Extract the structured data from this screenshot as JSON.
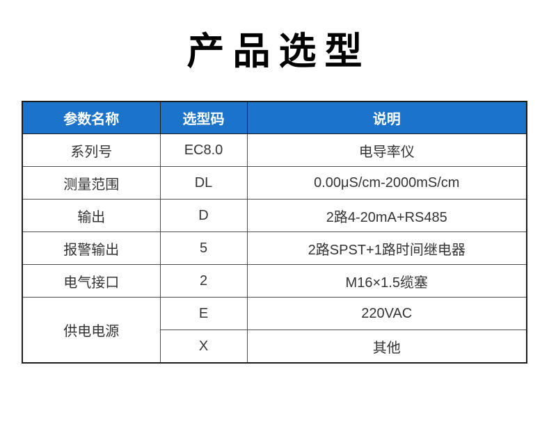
{
  "page": {
    "title": "产品选型",
    "background": "#ffffff"
  },
  "colors": {
    "header_bg": "#1b74ca",
    "header_text": "#ffffff",
    "body_text": "#333333",
    "outer_border": "#1c1c1c",
    "inner_border": "#4d4d4d",
    "title_text": "#000000"
  },
  "table": {
    "headers": [
      "参数名称",
      "选型码",
      "说明"
    ],
    "rows": [
      {
        "param": "系列号",
        "code": "EC8.0",
        "desc": "电导率仪"
      },
      {
        "param": "测量范围",
        "code": "DL",
        "desc": "0.00μS/cm-2000mS/cm"
      },
      {
        "param": "输出",
        "code": "D",
        "desc": "2路4-20mA+RS485"
      },
      {
        "param": "报警输出",
        "code": "5",
        "desc": "2路SPST+1路时间继电器"
      },
      {
        "param": "电气接口",
        "code": "2",
        "desc": "M16×1.5缆塞"
      },
      {
        "param": "供电电源",
        "code": "E",
        "desc": "220VAC",
        "param_rowspan": 2
      },
      {
        "code": "X",
        "desc": "其他"
      }
    ]
  }
}
